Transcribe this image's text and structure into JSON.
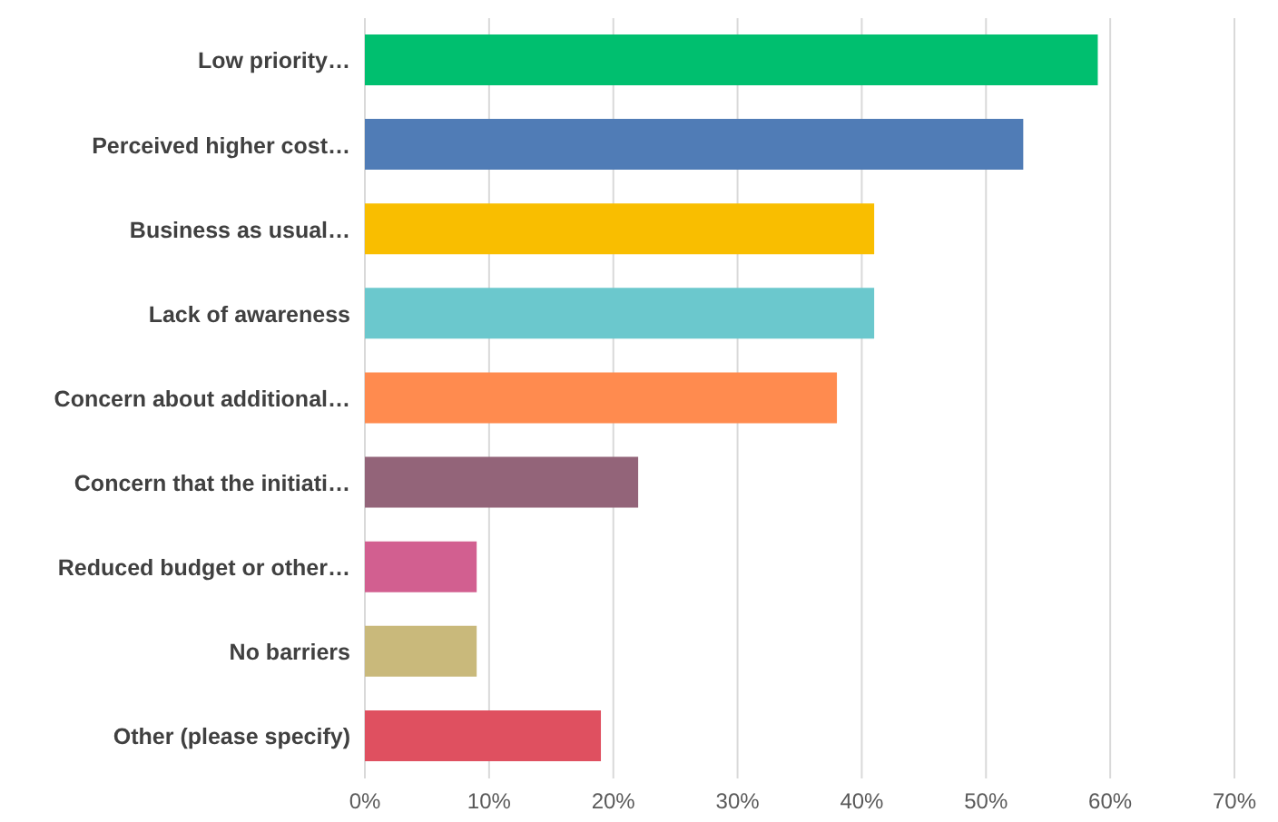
{
  "chart_data": {
    "type": "bar",
    "orientation": "horizontal",
    "categories": [
      "Low priority…",
      "Perceived higher cost…",
      "Business as usual…",
      "Lack of awareness",
      "Concern about additional…",
      "Concern that the initiati…",
      "Reduced budget or other…",
      "No barriers",
      "Other (please specify)"
    ],
    "values": [
      59,
      53,
      41,
      41,
      38,
      22,
      9,
      9,
      19
    ],
    "colors": [
      "#00bf6f",
      "#507cb6",
      "#f9be00",
      "#6bc8cd",
      "#ff8b4f",
      "#936479",
      "#d25f90",
      "#c9b97b",
      "#df5060"
    ],
    "xlim": [
      0,
      70
    ],
    "xticks": [
      {
        "value": 0,
        "label": "0%"
      },
      {
        "value": 10,
        "label": "10%"
      },
      {
        "value": 20,
        "label": "20%"
      },
      {
        "value": 30,
        "label": "30%"
      },
      {
        "value": 40,
        "label": "40%"
      },
      {
        "value": 50,
        "label": "50%"
      },
      {
        "value": 60,
        "label": "60%"
      },
      {
        "value": 70,
        "label": "70%"
      }
    ],
    "grid": "x",
    "legend": false
  }
}
